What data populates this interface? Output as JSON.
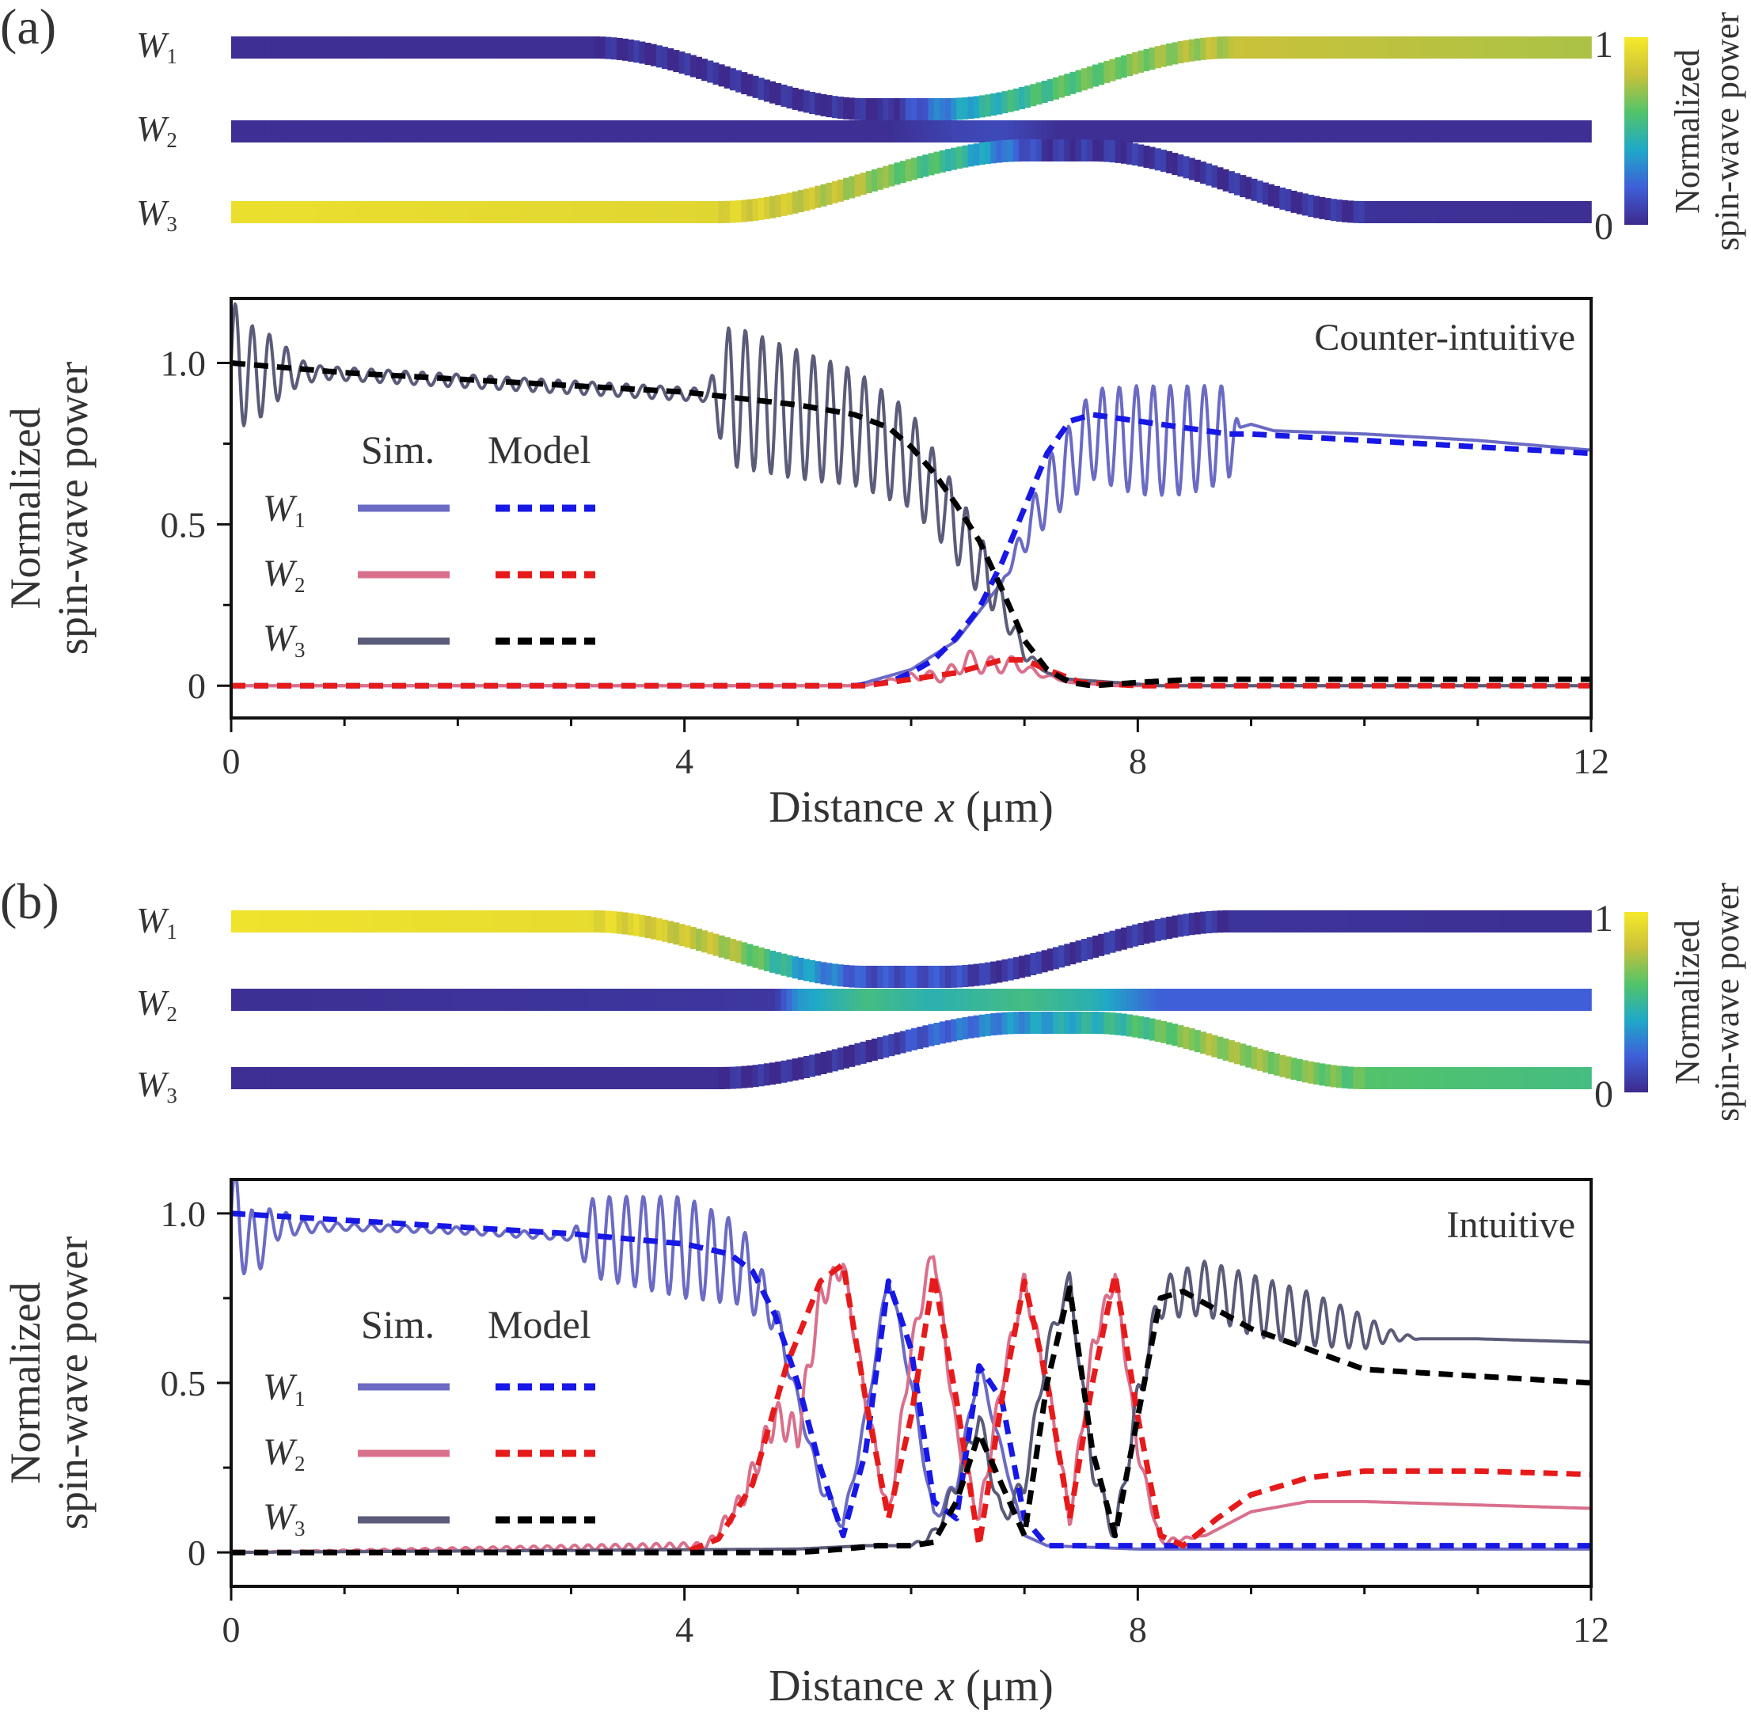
{
  "colorbar": {
    "title_line1": "Normalized",
    "title_line2": "spin-wave power",
    "tick_max": "1",
    "tick_min": "0",
    "stops": [
      "#3d2a8c",
      "#3f5fd8",
      "#1fa9c8",
      "#52c36a",
      "#c9c23a",
      "#f7e92a"
    ]
  },
  "waveguide_map": {
    "labels": [
      "W",
      "W",
      "W"
    ],
    "subscripts": [
      "1",
      "2",
      "3"
    ],
    "x_range_um": [
      0,
      12
    ],
    "shapes_um": [
      {
        "name": "W1",
        "bend_start": 3.2,
        "flat_start": 5.6,
        "flat_end": 6.3,
        "bend_end": 8.8,
        "direction": "down"
      },
      {
        "name": "W2",
        "straight": true
      },
      {
        "name": "W3",
        "bend_start": 4.3,
        "flat_start": 7.0,
        "flat_end": 7.6,
        "bend_end": 10.0,
        "direction": "up"
      }
    ],
    "power_profiles_panel_a": [
      [
        [
          0,
          0.02
        ],
        [
          5.8,
          0.02
        ],
        [
          6.2,
          0.25
        ],
        [
          6.6,
          0.45
        ],
        [
          7.4,
          0.6
        ],
        [
          8.8,
          0.78
        ],
        [
          8.9,
          0.8
        ],
        [
          12,
          0.75
        ]
      ],
      [
        [
          0,
          0.02
        ],
        [
          5.8,
          0.02
        ],
        [
          6.4,
          0.1
        ],
        [
          6.8,
          0.12
        ],
        [
          7.3,
          0.02
        ],
        [
          12,
          0.02
        ]
      ],
      [
        [
          0,
          0.95
        ],
        [
          4.3,
          0.9
        ],
        [
          5.5,
          0.75
        ],
        [
          6.4,
          0.5
        ],
        [
          7.2,
          0.05
        ],
        [
          12,
          0.02
        ]
      ]
    ],
    "power_profiles_panel_b": [
      [
        [
          0,
          0.97
        ],
        [
          3.2,
          0.93
        ],
        [
          4.4,
          0.75
        ],
        [
          5.0,
          0.4
        ],
        [
          5.6,
          0.15
        ],
        [
          6.3,
          0.15
        ],
        [
          6.7,
          0.05
        ],
        [
          12,
          0.02
        ]
      ],
      [
        [
          0,
          0.02
        ],
        [
          4.8,
          0.05
        ],
        [
          5.0,
          0.35
        ],
        [
          5.6,
          0.55
        ],
        [
          6.2,
          0.45
        ],
        [
          7.0,
          0.55
        ],
        [
          7.6,
          0.45
        ],
        [
          8.2,
          0.2
        ],
        [
          9.5,
          0.2
        ],
        [
          12,
          0.2
        ]
      ],
      [
        [
          0,
          0.02
        ],
        [
          5.6,
          0.02
        ],
        [
          6.2,
          0.2
        ],
        [
          7.0,
          0.35
        ],
        [
          7.8,
          0.5
        ],
        [
          8.6,
          0.72
        ],
        [
          9.4,
          0.68
        ],
        [
          10.0,
          0.6
        ],
        [
          12,
          0.55
        ]
      ]
    ]
  },
  "panels": [
    {
      "label": "(a)",
      "regime": "Counter-intuitive",
      "xlabel_pre": "Distance ",
      "xlabel_var": "x",
      "xlabel_post": " (μm)",
      "ylabel_line1": "Normalized",
      "ylabel_line2": "spin-wave power",
      "legend": {
        "sim": "Sim.",
        "model": "Model",
        "rows": [
          "W",
          "W",
          "W"
        ],
        "subs": [
          "1",
          "2",
          "3"
        ]
      }
    },
    {
      "label": "(b)",
      "regime": "Intuitive",
      "xlabel_pre": "Distance ",
      "xlabel_var": "x",
      "xlabel_post": " (μm)",
      "ylabel_line1": "Normalized",
      "ylabel_line2": "spin-wave power",
      "legend": {
        "sim": "Sim.",
        "model": "Model",
        "rows": [
          "W",
          "W",
          "W"
        ],
        "subs": [
          "1",
          "2",
          "3"
        ]
      }
    }
  ],
  "chart_data": [
    {
      "type": "line",
      "title": "Counter-intuitive",
      "xlabel": "Distance x (μm)",
      "ylabel": "Normalized spin-wave power",
      "xlim": [
        0,
        12
      ],
      "ylim": [
        -0.1,
        1.2
      ],
      "xticks": [
        "0",
        "4",
        "8",
        "12"
      ],
      "yticks": [
        "0",
        "0.5",
        "1.0"
      ],
      "series_colors": {
        "W1_sim": "#6b6bc4",
        "W2_sim": "#d9708c",
        "W3_sim": "#5b5b7a",
        "W1_model": "#1717e6",
        "W2_model": "#e61a1a",
        "W3_model": "#000000"
      },
      "series": [
        {
          "name": "W1 Model",
          "style": "dashed",
          "x": [
            0,
            5.5,
            5.8,
            6.0,
            6.2,
            6.4,
            6.6,
            6.8,
            7.0,
            7.2,
            7.4,
            7.6,
            8.0,
            8.8,
            9.0,
            10,
            11,
            12
          ],
          "y": [
            0,
            0,
            0.01,
            0.04,
            0.08,
            0.15,
            0.24,
            0.38,
            0.55,
            0.72,
            0.82,
            0.84,
            0.82,
            0.78,
            0.78,
            0.76,
            0.74,
            0.72
          ]
        },
        {
          "name": "W2 Model",
          "style": "dashed",
          "x": [
            0,
            5.6,
            6.0,
            6.4,
            6.8,
            7.0,
            7.2,
            7.5,
            8.0,
            12
          ],
          "y": [
            0,
            0,
            0.02,
            0.04,
            0.08,
            0.08,
            0.05,
            0.01,
            0,
            0
          ]
        },
        {
          "name": "W3 Model",
          "style": "dashed",
          "x": [
            0,
            1,
            2,
            3,
            4,
            4.5,
            5,
            5.5,
            5.8,
            6.0,
            6.2,
            6.4,
            6.6,
            6.8,
            7.0,
            7.2,
            7.4,
            7.6,
            8.0,
            8.5,
            9,
            10,
            11,
            12
          ],
          "y": [
            1.0,
            0.97,
            0.95,
            0.93,
            0.91,
            0.89,
            0.87,
            0.84,
            0.8,
            0.74,
            0.66,
            0.56,
            0.45,
            0.3,
            0.14,
            0.05,
            0.01,
            0,
            0.01,
            0.02,
            0.02,
            0.02,
            0.02,
            0.02
          ]
        },
        {
          "name": "W1 Sim.",
          "style": "solid",
          "x": [
            0,
            5.5,
            6.0,
            6.4,
            6.8,
            7.2,
            7.6,
            8.0,
            8.4,
            8.8,
            8.9,
            9.0,
            9.2,
            10,
            11,
            12
          ],
          "y": [
            0,
            0,
            0.05,
            0.14,
            0.32,
            0.6,
            0.78,
            0.76,
            0.76,
            0.78,
            0.8,
            0.81,
            0.79,
            0.78,
            0.76,
            0.73
          ],
          "osc_amp": [
            0,
            0,
            0,
            0,
            0,
            0.1,
            0.14,
            0.17,
            0.17,
            0.15,
            0,
            0,
            0,
            0,
            0,
            0
          ],
          "osc_period": 0.15
        },
        {
          "name": "W2 Sim.",
          "style": "solid",
          "x": [
            0,
            5.6,
            6.0,
            6.3,
            6.5,
            6.7,
            6.9,
            7.1,
            7.4,
            7.8,
            12
          ],
          "y": [
            0,
            0,
            0.03,
            0.03,
            0.08,
            0.06,
            0.07,
            0.04,
            0.01,
            0,
            0
          ],
          "osc_amp": [
            0,
            0,
            0.01,
            0.02,
            0.03,
            0.03,
            0.02,
            0.01,
            0,
            0,
            0
          ],
          "osc_period": 0.18
        },
        {
          "name": "W3 Sim.",
          "style": "solid",
          "x": [
            0,
            0.2,
            0.4,
            0.6,
            0.8,
            4.2,
            4.4,
            5.0,
            5.5,
            6.0,
            6.3,
            6.6,
            6.8,
            7.0,
            7.2,
            7.4,
            7.8,
            8.2,
            12
          ],
          "y": [
            1.0,
            0.96,
            0.98,
            0.97,
            0.97,
            0.9,
            0.9,
            0.84,
            0.8,
            0.7,
            0.55,
            0.38,
            0.25,
            0.1,
            0.04,
            0.02,
            0.01,
            0.0,
            0.0
          ],
          "osc_amp": [
            0.2,
            0.15,
            0.1,
            0.04,
            0.02,
            0.02,
            0.22,
            0.2,
            0.18,
            0.15,
            0.12,
            0.1,
            0.05,
            0.02,
            0,
            0,
            0,
            0,
            0
          ],
          "osc_period": 0.15
        }
      ]
    },
    {
      "type": "line",
      "title": "Intuitive",
      "xlabel": "Distance x (μm)",
      "ylabel": "Normalized spin-wave power",
      "xlim": [
        0,
        12
      ],
      "ylim": [
        -0.1,
        1.1
      ],
      "xticks": [
        "0",
        "4",
        "8",
        "12"
      ],
      "yticks": [
        "0",
        "0.5",
        "1.0"
      ],
      "series_colors": {
        "W1_sim": "#6b6bc4",
        "W2_sim": "#d9708c",
        "W3_sim": "#5b5b7a",
        "W1_model": "#1717e6",
        "W2_model": "#e61a1a",
        "W3_model": "#000000"
      },
      "series": [
        {
          "name": "W1 Model",
          "style": "dashed",
          "x": [
            0,
            1,
            2,
            3,
            4,
            4.4,
            4.6,
            4.8,
            5.0,
            5.2,
            5.4,
            5.6,
            5.8,
            6.0,
            6.2,
            6.4,
            6.6,
            6.8,
            7.0,
            7.2,
            7.6,
            8.0,
            9,
            12
          ],
          "y": [
            1.0,
            0.98,
            0.96,
            0.94,
            0.91,
            0.88,
            0.83,
            0.7,
            0.5,
            0.25,
            0.05,
            0.3,
            0.8,
            0.6,
            0.15,
            0.1,
            0.55,
            0.45,
            0.1,
            0.02,
            0.02,
            0.02,
            0.02,
            0.02
          ]
        },
        {
          "name": "W2 Model",
          "style": "dashed",
          "x": [
            0,
            4.0,
            4.3,
            4.6,
            4.9,
            5.2,
            5.4,
            5.6,
            5.8,
            6.0,
            6.2,
            6.4,
            6.6,
            6.8,
            7.0,
            7.2,
            7.4,
            7.6,
            7.8,
            8.0,
            8.2,
            8.4,
            8.7,
            9.0,
            9.5,
            10,
            11,
            12
          ],
          "y": [
            0,
            0,
            0.04,
            0.2,
            0.55,
            0.8,
            0.85,
            0.45,
            0.1,
            0.4,
            0.82,
            0.45,
            0.02,
            0.45,
            0.8,
            0.5,
            0.1,
            0.5,
            0.82,
            0.4,
            0.05,
            0.02,
            0.1,
            0.17,
            0.22,
            0.24,
            0.24,
            0.23
          ]
        },
        {
          "name": "W3 Model",
          "style": "dashed",
          "x": [
            0,
            5.0,
            5.4,
            5.7,
            6.0,
            6.2,
            6.4,
            6.6,
            6.8,
            7.0,
            7.2,
            7.4,
            7.6,
            7.8,
            8.0,
            8.2,
            8.4,
            9,
            10,
            11,
            12
          ],
          "y": [
            0,
            0,
            0.01,
            0.02,
            0.02,
            0.03,
            0.15,
            0.35,
            0.2,
            0.05,
            0.5,
            0.78,
            0.3,
            0.05,
            0.4,
            0.75,
            0.77,
            0.66,
            0.54,
            0.52,
            0.5
          ]
        },
        {
          "name": "W1 Sim.",
          "style": "solid",
          "x": [
            0,
            0.2,
            0.4,
            0.6,
            1,
            2,
            3,
            3.2,
            4,
            4.5,
            4.8,
            5.0,
            5.2,
            5.4,
            5.6,
            5.8,
            6.0,
            6.2,
            6.4,
            6.6,
            6.8,
            7.0,
            7.2,
            8,
            12
          ],
          "y": [
            1.0,
            0.9,
            0.97,
            0.96,
            0.96,
            0.95,
            0.93,
            0.93,
            0.9,
            0.85,
            0.7,
            0.45,
            0.2,
            0.08,
            0.4,
            0.82,
            0.5,
            0.1,
            0.2,
            0.55,
            0.3,
            0.05,
            0.02,
            0.01,
            0.01
          ],
          "osc_amp": [
            0.15,
            0.1,
            0.05,
            0.02,
            0.01,
            0.01,
            0.01,
            0.12,
            0.15,
            0.12,
            0.05,
            0.02,
            0.02,
            0.02,
            0.02,
            0.02,
            0.02,
            0.02,
            0.02,
            0.02,
            0.01,
            0,
            0,
            0,
            0
          ],
          "osc_period": 0.15
        },
        {
          "name": "W2 Sim.",
          "style": "solid",
          "x": [
            0,
            4.2,
            4.5,
            4.8,
            5.0,
            5.2,
            5.4,
            5.6,
            5.8,
            6.0,
            6.2,
            6.4,
            6.6,
            6.8,
            7.0,
            7.2,
            7.4,
            7.6,
            7.8,
            8.0,
            8.2,
            8.6,
            9,
            9.5,
            10,
            11,
            12
          ],
          "y": [
            0,
            0.02,
            0.15,
            0.4,
            0.35,
            0.75,
            0.85,
            0.45,
            0.1,
            0.6,
            0.9,
            0.35,
            0.1,
            0.5,
            0.8,
            0.5,
            0.1,
            0.6,
            0.82,
            0.3,
            0.03,
            0.05,
            0.12,
            0.15,
            0.15,
            0.14,
            0.13
          ],
          "osc_amp": [
            0,
            0.01,
            0.03,
            0.05,
            0.05,
            0.04,
            0.03,
            0.03,
            0.03,
            0.03,
            0.03,
            0.03,
            0.03,
            0.03,
            0.03,
            0.03,
            0.03,
            0.03,
            0.03,
            0.02,
            0.01,
            0,
            0,
            0,
            0,
            0,
            0
          ],
          "osc_period": 0.12
        },
        {
          "name": "W3 Sim.",
          "style": "solid",
          "x": [
            0,
            5.0,
            5.6,
            6.0,
            6.2,
            6.4,
            6.6,
            6.8,
            7.0,
            7.2,
            7.4,
            7.6,
            7.8,
            8.0,
            8.2,
            8.6,
            9.0,
            9.5,
            10,
            10.2,
            10.5,
            11,
            12
          ],
          "y": [
            0,
            0.01,
            0.02,
            0.02,
            0.05,
            0.2,
            0.4,
            0.1,
            0.2,
            0.6,
            0.8,
            0.25,
            0.05,
            0.45,
            0.75,
            0.78,
            0.73,
            0.69,
            0.65,
            0.64,
            0.63,
            0.63,
            0.62
          ],
          "osc_amp": [
            0,
            0,
            0,
            0,
            0.02,
            0.03,
            0.03,
            0.03,
            0.03,
            0.03,
            0.03,
            0.03,
            0.03,
            0.05,
            0.06,
            0.08,
            0.09,
            0.08,
            0.05,
            0.02,
            0,
            0,
            0
          ],
          "osc_period": 0.15
        }
      ]
    }
  ]
}
